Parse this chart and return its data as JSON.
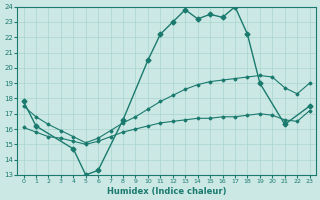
{
  "xlabel": "Humidex (Indice chaleur)",
  "xlim": [
    -0.5,
    23.5
  ],
  "ylim": [
    13,
    24
  ],
  "yticks": [
    13,
    14,
    15,
    16,
    17,
    18,
    19,
    20,
    21,
    22,
    23,
    24
  ],
  "xticks": [
    0,
    1,
    2,
    3,
    4,
    5,
    6,
    7,
    8,
    9,
    10,
    11,
    12,
    13,
    14,
    15,
    16,
    17,
    18,
    19,
    20,
    21,
    22,
    23
  ],
  "bg_color": "#cce8e5",
  "grid_color": "#aad4d0",
  "line_color": "#1a7a6e",
  "jagged_x": [
    0,
    1,
    4,
    5,
    6,
    8,
    10,
    11,
    12,
    13,
    14,
    15,
    16,
    17,
    18,
    19,
    21,
    23
  ],
  "jagged_y": [
    17.8,
    16.2,
    14.7,
    13.0,
    13.3,
    16.6,
    20.5,
    22.2,
    23.0,
    23.8,
    23.2,
    23.5,
    23.3,
    24.0,
    22.2,
    19.0,
    16.3,
    17.5
  ],
  "diag1_x": [
    0,
    1,
    2,
    3,
    4,
    5,
    6,
    7,
    8,
    9,
    10,
    11,
    12,
    13,
    14,
    15,
    16,
    17,
    18,
    19,
    20,
    21,
    22,
    23
  ],
  "diag1_y": [
    16.1,
    15.8,
    15.5,
    15.4,
    15.2,
    15.0,
    15.2,
    15.5,
    15.8,
    16.0,
    16.2,
    16.4,
    16.5,
    16.6,
    16.7,
    16.7,
    16.8,
    16.8,
    16.9,
    17.0,
    16.9,
    16.6,
    16.5,
    17.2
  ],
  "diag2_x": [
    0,
    1,
    2,
    3,
    4,
    5,
    6,
    7,
    8,
    9,
    10,
    11,
    12,
    13,
    14,
    15,
    16,
    17,
    18,
    19,
    20,
    21,
    22,
    23
  ],
  "diag2_y": [
    17.5,
    16.8,
    16.3,
    15.9,
    15.5,
    15.1,
    15.4,
    15.9,
    16.4,
    16.8,
    17.3,
    17.8,
    18.2,
    18.6,
    18.9,
    19.1,
    19.2,
    19.3,
    19.4,
    19.5,
    19.4,
    18.7,
    18.3,
    19.0
  ]
}
